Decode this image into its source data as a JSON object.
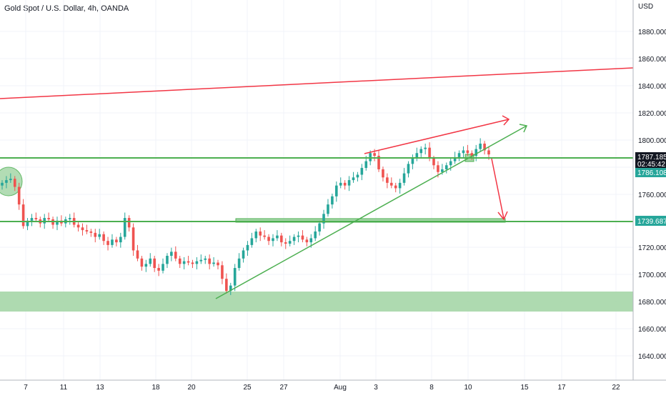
{
  "title": "Gold Spot / U.S. Dollar, 4h, OANDA",
  "currency": "USD",
  "colors": {
    "bull": "#26a69a",
    "bear": "#ef5350",
    "green_line": "#4caf50",
    "red_line": "#f23645",
    "zone_fill": "#a5d6a7",
    "tag_dark": "#131722",
    "tag_green": "#26a69a"
  },
  "chart_data": {
    "type": "candlestick",
    "y_ticks": [
      "1880.000",
      "1860.000",
      "1840.000",
      "1820.000",
      "1800.000",
      "1780.000",
      "1760.000",
      "1740.000",
      "1720.000",
      "1700.000",
      "1680.000",
      "1660.000",
      "1640.000"
    ],
    "x_ticks": [
      "7",
      "11",
      "13",
      "18",
      "20",
      "25",
      "27",
      "Aug",
      "3",
      "8",
      "10",
      "15",
      "17",
      "22"
    ],
    "ylim": [
      1625,
      1895
    ],
    "price_tags": [
      {
        "id": "current",
        "price": "1787.185",
        "countdown": "02:45:42"
      },
      {
        "id": "level-a",
        "price": "1786.108"
      },
      {
        "id": "level-b",
        "price": "1739.687"
      }
    ],
    "closes": [
      1768,
      1770,
      1771,
      1765,
      1752,
      1736,
      1740,
      1742,
      1741,
      1738,
      1742,
      1741,
      1737,
      1740,
      1738,
      1741,
      1742,
      1737,
      1735,
      1733,
      1732,
      1731,
      1728,
      1730,
      1725,
      1722,
      1726,
      1724,
      1728,
      1742,
      1735,
      1718,
      1712,
      1706,
      1708,
      1712,
      1705,
      1703,
      1708,
      1714,
      1717,
      1712,
      1708,
      1710,
      1709,
      1708,
      1710,
      1711,
      1712,
      1708,
      1709,
      1707,
      1697,
      1688,
      1692,
      1705,
      1712,
      1718,
      1722,
      1727,
      1732,
      1729,
      1728,
      1725,
      1727,
      1729,
      1724,
      1723,
      1725,
      1728,
      1729,
      1726,
      1724,
      1727,
      1732,
      1738,
      1745,
      1752,
      1758,
      1766,
      1768,
      1766,
      1770,
      1772,
      1774,
      1779,
      1784,
      1790,
      1788,
      1778,
      1772,
      1768,
      1766,
      1764,
      1768,
      1775,
      1782,
      1786,
      1790,
      1793,
      1794,
      1786,
      1781,
      1776,
      1778,
      1781,
      1784,
      1787,
      1790,
      1792,
      1790,
      1788,
      1793,
      1797,
      1792,
      1789
    ]
  }
}
